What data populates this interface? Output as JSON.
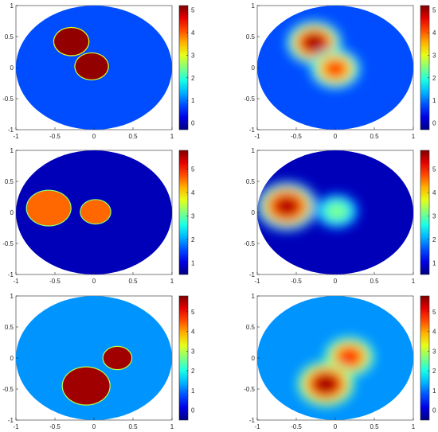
{
  "chart_data": [
    {
      "type": "heatmap",
      "xlim": [
        -1,
        1
      ],
      "ylim": [
        -1,
        1
      ],
      "xticks": [
        "-1",
        "-0.5",
        "0",
        "0.5",
        "1"
      ],
      "yticks": [
        "1",
        "0.5",
        "0",
        "-0.5",
        "-1"
      ],
      "colorbar": {
        "min": -0.3,
        "max": 5.2,
        "ticks": [
          "5",
          "4",
          "3",
          "2",
          "1",
          "0"
        ]
      },
      "background": 0.8,
      "blur": false,
      "inclusions": [
        {
          "x": -0.29,
          "y": 0.42,
          "r": 0.22,
          "value": 5.1,
          "edge_value": 3.0
        },
        {
          "x": -0.03,
          "y": 0.02,
          "r": 0.21,
          "value": 5.1,
          "edge_value": 3.0
        }
      ]
    },
    {
      "type": "heatmap",
      "xlim": [
        -1,
        1
      ],
      "ylim": [
        -1,
        1
      ],
      "xticks": [
        "-1",
        "-0.5",
        "0",
        "0.5",
        "1"
      ],
      "yticks": [
        "1",
        "0.5",
        "0",
        "-0.5",
        "-1"
      ],
      "colorbar": {
        "min": -0.3,
        "max": 5.2,
        "ticks": [
          "5",
          "4",
          "3",
          "2",
          "1",
          "0"
        ]
      },
      "background": 0.8,
      "blur": true,
      "inclusions": [
        {
          "x": -0.27,
          "y": 0.4,
          "r": 0.24,
          "value": 5.1
        },
        {
          "x": 0.0,
          "y": -0.02,
          "r": 0.22,
          "value": 4.3
        }
      ]
    },
    {
      "type": "heatmap",
      "xlim": [
        -1,
        1
      ],
      "ylim": [
        -1,
        1
      ],
      "xticks": [
        "-1",
        "-0.5",
        "0",
        "0.5",
        "1"
      ],
      "yticks": [
        "1",
        "0.5",
        "0",
        "-0.5",
        "-1"
      ],
      "colorbar": {
        "min": 0.5,
        "max": 5.8,
        "ticks": [
          "5",
          "4",
          "3",
          "2",
          "1"
        ]
      },
      "background": 0.8,
      "blur": false,
      "inclusions": [
        {
          "x": -0.58,
          "y": 0.07,
          "r": 0.28,
          "value": 4.6,
          "edge_value": 3.2
        },
        {
          "x": 0.02,
          "y": 0.01,
          "r": 0.19,
          "value": 4.6,
          "edge_value": 3.2
        }
      ]
    },
    {
      "type": "heatmap",
      "xlim": [
        -1,
        1
      ],
      "ylim": [
        -1,
        1
      ],
      "xticks": [
        "-1",
        "-0.5",
        "0",
        "0.5",
        "1"
      ],
      "yticks": [
        "1",
        "0.5",
        "0",
        "-0.5",
        "-1"
      ],
      "colorbar": {
        "min": 0.5,
        "max": 5.8,
        "ticks": [
          "5",
          "4",
          "3",
          "2",
          "1"
        ]
      },
      "background": 0.8,
      "blur": true,
      "inclusions": [
        {
          "x": -0.62,
          "y": 0.1,
          "r": 0.28,
          "value": 5.6
        },
        {
          "x": 0.02,
          "y": 0.02,
          "r": 0.2,
          "value": 3.2
        }
      ]
    },
    {
      "type": "heatmap",
      "xlim": [
        -1,
        1
      ],
      "ylim": [
        -1,
        1
      ],
      "xticks": [
        "-1",
        "-0.5",
        "0",
        "0.5",
        "1"
      ],
      "yticks": [
        "1",
        "0.5",
        "0",
        "-0.5",
        "-1"
      ],
      "colorbar": {
        "min": -0.5,
        "max": 5.8,
        "ticks": [
          "5",
          "4",
          "3",
          "2",
          "1",
          "0"
        ]
      },
      "background": 1.2,
      "blur": false,
      "inclusions": [
        {
          "x": 0.3,
          "y": 0.0,
          "r": 0.18,
          "value": 5.6,
          "edge_value": 3.0
        },
        {
          "x": -0.1,
          "y": -0.45,
          "r": 0.3,
          "value": 5.6,
          "edge_value": 3.0
        }
      ]
    },
    {
      "type": "heatmap",
      "xlim": [
        -1,
        1
      ],
      "ylim": [
        -1,
        1
      ],
      "xticks": [
        "-1",
        "-0.5",
        "0",
        "0.5",
        "1"
      ],
      "yticks": [
        "1",
        "0.5",
        "0",
        "-0.5",
        "-1"
      ],
      "colorbar": {
        "min": -0.5,
        "max": 5.8,
        "ticks": [
          "5",
          "4",
          "3",
          "2",
          "1",
          "0"
        ]
      },
      "background": 1.2,
      "blur": true,
      "inclusions": [
        {
          "x": 0.18,
          "y": 0.02,
          "r": 0.22,
          "value": 4.9
        },
        {
          "x": -0.12,
          "y": -0.42,
          "r": 0.25,
          "value": 5.7
        }
      ]
    }
  ]
}
